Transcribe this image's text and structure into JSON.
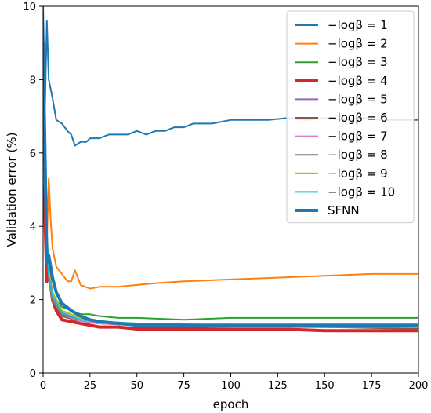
{
  "chart_data": {
    "type": "line",
    "xlabel": "epoch",
    "ylabel": "Validation error (%)",
    "xlim": [
      0,
      200
    ],
    "ylim": [
      0,
      10
    ],
    "xticks": [
      0,
      25,
      50,
      75,
      100,
      125,
      150,
      175,
      200
    ],
    "yticks": [
      0,
      2,
      4,
      6,
      8,
      10
    ],
    "grid": false,
    "legend_position": "top-right",
    "series": [
      {
        "name": "−logβ = 1",
        "color": "#1f77b4",
        "width": 2,
        "x": [
          0,
          1,
          2,
          3,
          5,
          7,
          10,
          13,
          15,
          17,
          20,
          23,
          25,
          30,
          35,
          40,
          45,
          50,
          55,
          60,
          65,
          70,
          75,
          80,
          90,
          100,
          110,
          120,
          130,
          140,
          150,
          160,
          170,
          180,
          190,
          200
        ],
        "y": [
          10,
          7.2,
          9.6,
          8.0,
          7.5,
          6.9,
          6.8,
          6.6,
          6.5,
          6.2,
          6.3,
          6.3,
          6.4,
          6.4,
          6.5,
          6.5,
          6.5,
          6.6,
          6.5,
          6.6,
          6.6,
          6.7,
          6.7,
          6.8,
          6.8,
          6.9,
          6.9,
          6.9,
          6.95,
          6.9,
          6.95,
          6.9,
          6.95,
          6.9,
          6.9,
          6.9
        ]
      },
      {
        "name": "−logβ = 2",
        "color": "#ff7f0e",
        "width": 2,
        "x": [
          0,
          2,
          3,
          4,
          5,
          7,
          10,
          13,
          15,
          17,
          20,
          25,
          30,
          40,
          50,
          60,
          75,
          100,
          125,
          150,
          175,
          200
        ],
        "y": [
          8.5,
          3.6,
          5.3,
          4.2,
          3.4,
          2.9,
          2.7,
          2.5,
          2.5,
          2.8,
          2.4,
          2.3,
          2.35,
          2.35,
          2.4,
          2.45,
          2.5,
          2.55,
          2.6,
          2.65,
          2.7,
          2.7
        ]
      },
      {
        "name": "−logβ = 3",
        "color": "#2ca02c",
        "width": 2,
        "x": [
          0,
          2,
          3,
          5,
          7,
          10,
          15,
          20,
          25,
          30,
          40,
          50,
          75,
          100,
          125,
          150,
          175,
          200
        ],
        "y": [
          6.0,
          2.6,
          2.6,
          2.2,
          2.0,
          1.8,
          1.7,
          1.6,
          1.6,
          1.55,
          1.5,
          1.5,
          1.45,
          1.5,
          1.5,
          1.5,
          1.5,
          1.5
        ]
      },
      {
        "name": "−logβ = 4",
        "color": "#d62728",
        "width": 4,
        "x": [
          0,
          2,
          3,
          5,
          7,
          10,
          15,
          20,
          25,
          30,
          40,
          50,
          75,
          100,
          125,
          150,
          175,
          200
        ],
        "y": [
          6.0,
          2.5,
          2.8,
          2.0,
          1.7,
          1.45,
          1.4,
          1.35,
          1.3,
          1.25,
          1.25,
          1.2,
          1.2,
          1.2,
          1.2,
          1.15,
          1.15,
          1.15
        ]
      },
      {
        "name": "−logβ = 5",
        "color": "#9467bd",
        "width": 2,
        "x": [
          0,
          3,
          5,
          10,
          20,
          30,
          50,
          100,
          150,
          200
        ],
        "y": [
          6.0,
          2.6,
          2.0,
          1.55,
          1.4,
          1.35,
          1.3,
          1.25,
          1.25,
          1.25
        ]
      },
      {
        "name": "−logβ = 6",
        "color": "#8c564b",
        "width": 2,
        "x": [
          0,
          3,
          5,
          10,
          20,
          30,
          50,
          100,
          150,
          200
        ],
        "y": [
          6.0,
          2.6,
          2.0,
          1.55,
          1.4,
          1.35,
          1.3,
          1.25,
          1.25,
          1.2
        ]
      },
      {
        "name": "−logβ = 7",
        "color": "#e377c2",
        "width": 2,
        "x": [
          0,
          3,
          5,
          10,
          20,
          30,
          50,
          100,
          150,
          200
        ],
        "y": [
          6.0,
          2.6,
          2.0,
          1.6,
          1.4,
          1.35,
          1.3,
          1.25,
          1.25,
          1.25
        ]
      },
      {
        "name": "−logβ = 8",
        "color": "#7f7f7f",
        "width": 2,
        "x": [
          0,
          3,
          5,
          10,
          20,
          30,
          50,
          100,
          150,
          200
        ],
        "y": [
          6.0,
          2.6,
          2.0,
          1.6,
          1.45,
          1.4,
          1.3,
          1.3,
          1.25,
          1.25
        ]
      },
      {
        "name": "−logβ = 9",
        "color": "#bcbd22",
        "width": 2,
        "x": [
          0,
          3,
          5,
          10,
          20,
          30,
          50,
          100,
          150,
          200
        ],
        "y": [
          6.0,
          2.8,
          2.2,
          1.7,
          1.5,
          1.4,
          1.35,
          1.3,
          1.3,
          1.25
        ]
      },
      {
        "name": "−logβ = 10",
        "color": "#17becf",
        "width": 2,
        "x": [
          0,
          3,
          5,
          10,
          20,
          30,
          50,
          100,
          150,
          200
        ],
        "y": [
          6.0,
          2.7,
          2.1,
          1.65,
          1.45,
          1.4,
          1.35,
          1.3,
          1.3,
          1.25
        ]
      },
      {
        "name": "SFNN",
        "color": "#1f77b4",
        "width": 4,
        "x": [
          0,
          2,
          3,
          5,
          7,
          10,
          15,
          20,
          25,
          30,
          40,
          50,
          75,
          100,
          125,
          150,
          175,
          200
        ],
        "y": [
          9.0,
          3.0,
          3.2,
          2.6,
          2.2,
          1.9,
          1.7,
          1.55,
          1.45,
          1.4,
          1.35,
          1.3,
          1.3,
          1.3,
          1.3,
          1.3,
          1.3,
          1.3
        ]
      }
    ]
  }
}
